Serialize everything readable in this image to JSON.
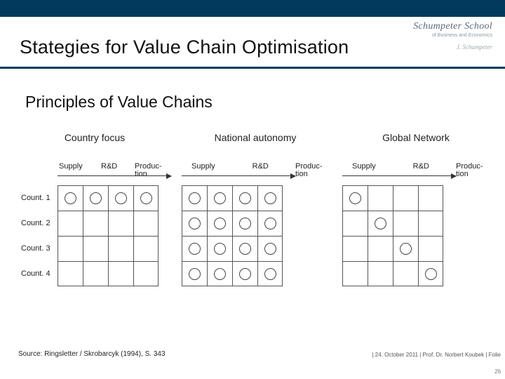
{
  "header": {
    "title": "Stategies for Value Chain Optimisation",
    "logo_main": "Schumpeter School",
    "logo_sub": "of Business and Economics",
    "logo_sig": "J. Schumpeter"
  },
  "subtitle": "Principles of Value Chains",
  "columns": [
    "Supply",
    "",
    "R&D",
    "Produc-\ntion"
  ],
  "row_labels": [
    "Count. 1",
    "Count. 2",
    "Count. 3",
    "Count. 4"
  ],
  "panels": [
    {
      "title": "Country focus",
      "show_row_labels": true,
      "marks": [
        [
          1,
          1,
          1,
          1
        ],
        [
          0,
          0,
          0,
          0
        ],
        [
          0,
          0,
          0,
          0
        ],
        [
          0,
          0,
          0,
          0
        ]
      ]
    },
    {
      "title": "National autonomy",
      "show_row_labels": false,
      "marks": [
        [
          1,
          1,
          1,
          1
        ],
        [
          1,
          1,
          1,
          1
        ],
        [
          1,
          1,
          1,
          1
        ],
        [
          1,
          1,
          1,
          1
        ]
      ]
    },
    {
      "title": "Global Network",
      "show_row_labels": false,
      "marks": [
        [
          1,
          0,
          0,
          0
        ],
        [
          0,
          1,
          0,
          0
        ],
        [
          0,
          0,
          1,
          0
        ],
        [
          0,
          0,
          0,
          1
        ]
      ]
    }
  ],
  "source": "Source: Ringsletter / Skrobarcyk (1994), S. 343",
  "footer_right": "| 24. October 2011 | Prof. Dr. Norbert Koubek | Folie",
  "page_number": "26",
  "colors": {
    "brand": "#003a5d",
    "grid_line": "#555",
    "circle": "#444"
  }
}
